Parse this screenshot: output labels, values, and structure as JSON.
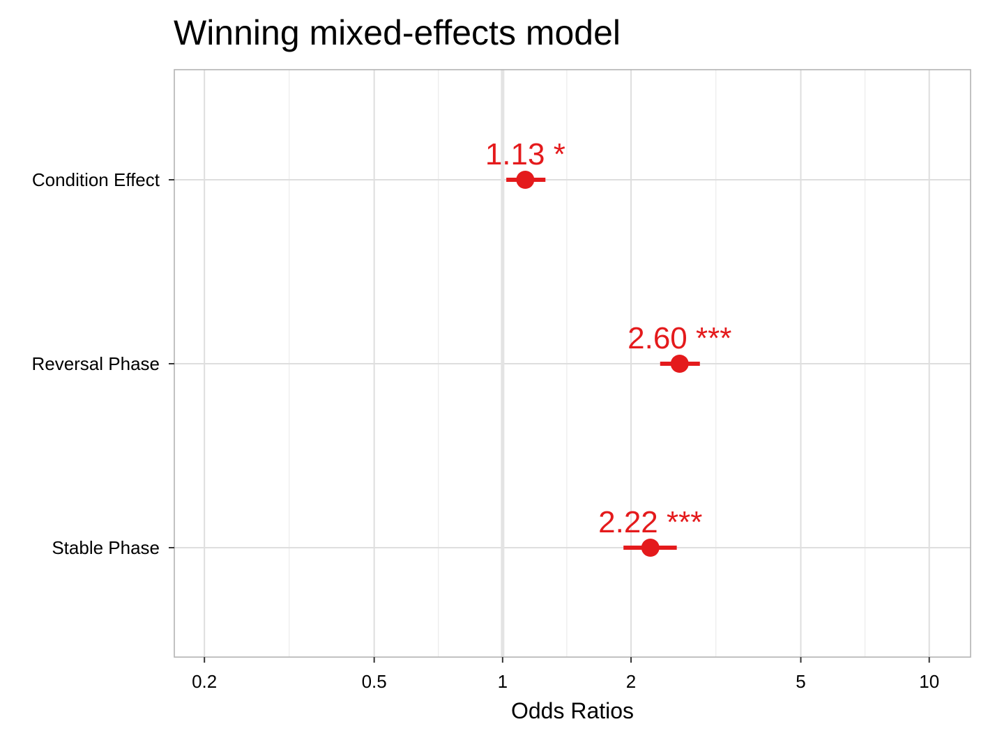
{
  "chart_data": {
    "type": "forest",
    "title": "Winning mixed-effects model",
    "xlabel": "Odds Ratios",
    "ylabel": "",
    "x_scale": "log",
    "xlim": [
      0.17,
      12.5
    ],
    "x_ticks": [
      {
        "value": 0.2,
        "label": "0.2"
      },
      {
        "value": 0.5,
        "label": "0.5"
      },
      {
        "value": 1,
        "label": "1"
      },
      {
        "value": 2,
        "label": "2"
      },
      {
        "value": 5,
        "label": "5"
      },
      {
        "value": 10,
        "label": "10"
      }
    ],
    "x_minor_ticks": [
      0.316,
      0.707,
      1.414,
      3.162,
      7.071
    ],
    "reference_line": 1,
    "grid": true,
    "color": "#e41a1c",
    "terms": [
      {
        "label": "Condition Effect",
        "estimate": 1.13,
        "ci_low": 1.02,
        "ci_high": 1.26,
        "text": "1.13 *"
      },
      {
        "label": "Reversal Phase",
        "estimate": 2.6,
        "ci_low": 2.34,
        "ci_high": 2.9,
        "text": "2.60 ***"
      },
      {
        "label": "Stable Phase",
        "estimate": 2.22,
        "ci_low": 1.92,
        "ci_high": 2.56,
        "text": "2.22 ***"
      }
    ]
  }
}
